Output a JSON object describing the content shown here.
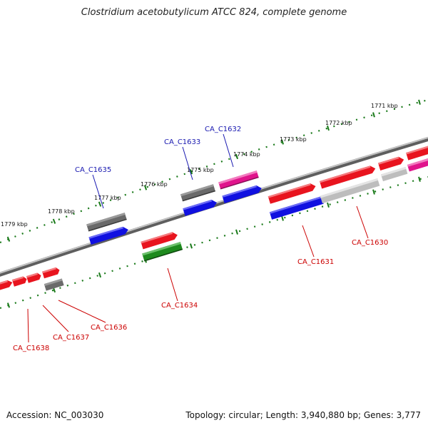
{
  "header": {
    "title": "Clostridium acetobutylicum ATCC 824, complete genome"
  },
  "footer": {
    "accession": "Accession: NC_003030",
    "stats": "Topology: circular; Length: 3,940,880 bp; Genes: 3,777"
  },
  "scale_labels": [
    "1771 kbp",
    "1772 kbp",
    "1773 kbp",
    "1774 kbp",
    "1775 kbp",
    "1776 kbp",
    "1777 kbp",
    "1778 kbp",
    "1779 kbp"
  ],
  "gene_labels": [
    "CA_C1630",
    "CA_C1631",
    "CA_C1632",
    "CA_C1633",
    "CA_C1634",
    "CA_C1635",
    "CA_C1636",
    "CA_C1637",
    "CA_C1638"
  ],
  "colors": {
    "red": "#e8141e",
    "blue": "#1010e0",
    "grey": "#6a6a6a",
    "light_grey": "#bdbdbd",
    "magenta": "#e0148c",
    "green": "#1e8a1e",
    "tick": "#1a7a1a",
    "label_red": "#cc0000",
    "label_blue": "#1818b0",
    "backbone": "#7a7a7a"
  }
}
